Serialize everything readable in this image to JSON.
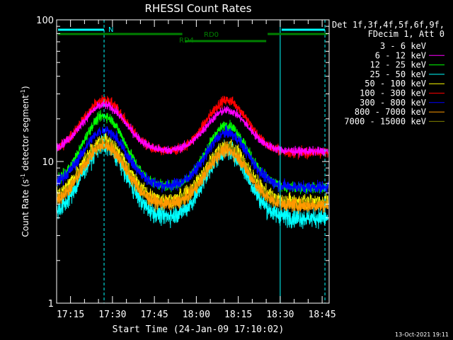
{
  "chart_data": {
    "type": "line",
    "title": "RHESSI Count Rates",
    "xlabel": "Start Time (24-Jan-09 17:10:02)",
    "ylabel_main": "Count Rate (s",
    "ylabel_sup1": "-1",
    "ylabel_mid": " detector segment",
    "ylabel_sup2": "-1",
    "ylabel_end": ")",
    "y_scale": "log",
    "ylim": [
      1,
      100
    ],
    "y_ticks": [
      {
        "value": 1,
        "label": "1"
      },
      {
        "value": 10,
        "label": "10"
      },
      {
        "value": 100,
        "label": "100"
      }
    ],
    "x_ticks": [
      "17:15",
      "17:30",
      "17:45",
      "18:00",
      "18:15",
      "18:30",
      "18:45"
    ],
    "x_tick_minutes": [
      15,
      30,
      45,
      60,
      75,
      90,
      105
    ],
    "xlim_minutes": [
      10.03,
      107.5
    ],
    "legend": {
      "header_line1": "Det 1f,3f,4f,5f,6f,9f,",
      "header_line2": "FDecim 1, Att 0",
      "entries": [
        {
          "label": "3 - 6 keV",
          "color": "#000000"
        },
        {
          "label": "6 - 12 keV",
          "color": "#ff00ff"
        },
        {
          "label": "12 - 25 keV",
          "color": "#00ff00"
        },
        {
          "label": "25 - 50 keV",
          "color": "#00ffff"
        },
        {
          "label": "50 - 100 keV",
          "color": "#ffff00"
        },
        {
          "label": "100 - 300 keV",
          "color": "#ff0000"
        },
        {
          "label": "300 - 800 keV",
          "color": "#0000ff"
        },
        {
          "label": "800 - 7000 keV",
          "color": "#ff9900"
        },
        {
          "label": "7000 - 15000 keV",
          "color": "#808000"
        }
      ]
    },
    "series": [
      {
        "name": "100 - 300 keV",
        "color": "#ff0000",
        "base": 11.5,
        "peak1": 27,
        "peak2": 27,
        "noise": 0.06,
        "draw_order": 1
      },
      {
        "name": "6 - 12 keV",
        "color": "#ff00ff",
        "base": 11.8,
        "peak1": 25,
        "peak2": 23,
        "noise": 0.05,
        "draw_order": 2
      },
      {
        "name": "12 - 25 keV",
        "color": "#00ff00",
        "base": 6.5,
        "peak1": 21,
        "peak2": 18,
        "noise": 0.06,
        "draw_order": 3
      },
      {
        "name": "300 - 800 keV",
        "color": "#0000ff",
        "base": 6.6,
        "peak1": 16.5,
        "peak2": 16,
        "noise": 0.07,
        "draw_order": 4
      },
      {
        "name": "3 - 6 keV",
        "color": "#000000",
        "base": 5.0,
        "peak1": 15,
        "peak2": 14,
        "noise": 0.07,
        "draw_order": 5
      },
      {
        "name": "25 - 50 keV",
        "color": "#00ffff",
        "base": 4.0,
        "peak1": 13,
        "peak2": 12,
        "noise": 0.11,
        "draw_order": 6
      },
      {
        "name": "50 - 100 keV",
        "color": "#ffff00",
        "base": 5.2,
        "peak1": 14,
        "peak2": 13,
        "noise": 0.08,
        "draw_order": 7
      },
      {
        "name": "7000 - 15000 keV",
        "color": "#808000",
        "base": 5.0,
        "peak1": 13.5,
        "peak2": 12.5,
        "noise": 0.08,
        "draw_order": 8
      },
      {
        "name": "800 - 7000 keV",
        "color": "#ff9900",
        "base": 4.9,
        "peak1": 13,
        "peak2": 12,
        "noise": 0.08,
        "draw_order": 9
      }
    ],
    "peak1_minute": 27,
    "peak2_minute": 71,
    "night_ranges_minutes": [
      [
        10.03,
        27
      ],
      [
        90,
        106
      ]
    ],
    "night_label": "N",
    "rd0_label": "RD0",
    "rd4_label": "RD4",
    "rd0_ranges_minutes": [
      [
        10.03,
        55
      ],
      [
        85,
        107
      ]
    ],
    "rd4_range_minutes": [
      56,
      85
    ],
    "solid_vlines_minutes": [
      10.03,
      90
    ],
    "dashed_vlines_minutes": [
      27,
      106
    ],
    "timestamp": "13-Oct-2021 19:11"
  }
}
